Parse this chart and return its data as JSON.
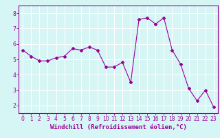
{
  "x": [
    0,
    1,
    2,
    3,
    4,
    5,
    6,
    7,
    8,
    9,
    10,
    11,
    12,
    13,
    14,
    15,
    16,
    17,
    18,
    19,
    20,
    21,
    22,
    23
  ],
  "y": [
    5.6,
    5.2,
    4.9,
    4.9,
    5.1,
    5.2,
    5.7,
    5.6,
    5.8,
    5.6,
    4.5,
    4.5,
    4.8,
    3.5,
    7.6,
    7.7,
    7.3,
    7.7,
    5.6,
    4.7,
    3.1,
    2.3,
    3.0,
    1.9
  ],
  "line_color": "#990099",
  "marker": "D",
  "marker_size": 2,
  "line_width": 0.8,
  "bg_color": "#d6f5f5",
  "grid_color": "#ffffff",
  "xlabel": "Windchill (Refroidissement éolien,°C)",
  "ylabel": "",
  "xlim": [
    -0.5,
    23.5
  ],
  "ylim": [
    1.5,
    8.5
  ],
  "yticks": [
    2,
    3,
    4,
    5,
    6,
    7,
    8
  ],
  "xticks": [
    0,
    1,
    2,
    3,
    4,
    5,
    6,
    7,
    8,
    9,
    10,
    11,
    12,
    13,
    14,
    15,
    16,
    17,
    18,
    19,
    20,
    21,
    22,
    23
  ],
  "tick_label_size": 5.5,
  "xlabel_size": 6.5,
  "axis_color": "#990099",
  "spine_color": "#990099"
}
